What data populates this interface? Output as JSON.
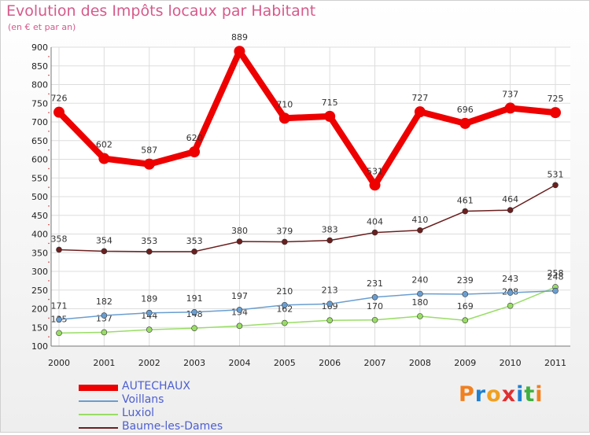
{
  "header": {
    "title": "Evolution des Impôts locaux par Habitant",
    "subtitle": "(en € et par an)"
  },
  "logo": {
    "letters": [
      "P",
      "r",
      "o",
      "x",
      "i",
      "t",
      "i"
    ],
    "colors": [
      "#f08020",
      "#2080d0",
      "#f0a020",
      "#e03030",
      "#2080d0",
      "#40b040",
      "#f08020"
    ]
  },
  "chart_data": {
    "type": "line",
    "title": "Evolution des Impôts locaux par Habitant",
    "subtitle": "(en € et par an)",
    "xlabel": "",
    "ylabel": "",
    "x": [
      "2000",
      "2001",
      "2002",
      "2003",
      "2004",
      "2005",
      "2006",
      "2007",
      "2008",
      "2009",
      "2010",
      "2011"
    ],
    "ylim": [
      100,
      900
    ],
    "yticks": [
      100,
      150,
      200,
      250,
      300,
      350,
      400,
      450,
      500,
      550,
      600,
      650,
      700,
      750,
      800,
      850,
      900
    ],
    "grid": true,
    "legend": "bottom-left",
    "series": [
      {
        "name": "AUTECHAUX",
        "color": "#ee0000",
        "values": [
          726,
          602,
          587,
          620,
          889,
          710,
          715,
          531,
          727,
          696,
          737,
          725
        ]
      },
      {
        "name": "Voillans",
        "color": "#6a9ed0",
        "values": [
          171,
          182,
          189,
          191,
          197,
          210,
          213,
          231,
          240,
          239,
          243,
          248
        ]
      },
      {
        "name": "Luxiol",
        "color": "#99dd66",
        "values": [
          135,
          137,
          144,
          148,
          154,
          162,
          169,
          170,
          180,
          169,
          208,
          258
        ]
      },
      {
        "name": "Baume-les-Dames",
        "color": "#6b1f1f",
        "values": [
          358,
          354,
          353,
          353,
          380,
          379,
          383,
          404,
          410,
          461,
          464,
          531
        ]
      }
    ]
  }
}
